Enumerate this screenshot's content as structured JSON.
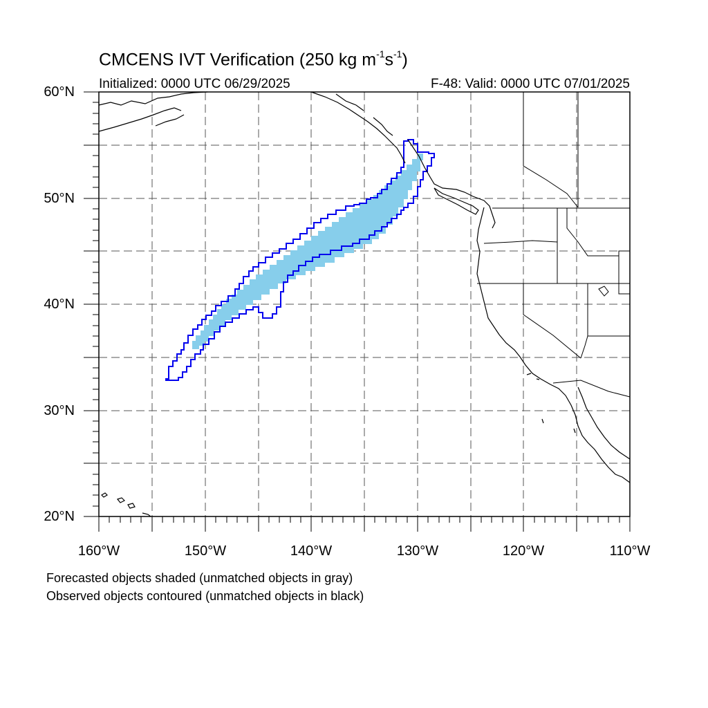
{
  "title": {
    "main": "CMCENS IVT Verification (250 kg m",
    "sup1": "-1",
    "mid": "s",
    "sup2": "-1",
    "end": ")"
  },
  "subtitle": {
    "left": "Initialized: 0000 UTC 06/29/2025",
    "right": "F-48: Valid: 0000 UTC 07/01/2025"
  },
  "lat_labels": [
    "60°N",
    "50°N",
    "40°N",
    "30°N",
    "20°N"
  ],
  "lon_labels": [
    "160°W",
    "150°W",
    "140°W",
    "130°W",
    "120°W",
    "110°W"
  ],
  "footnotes": {
    "line1": "Forecasted objects shaded (unmatched objects in gray)",
    "line2": "Observed objects contoured (unmatched objects in black)"
  },
  "colors": {
    "forecast_fill": "#87ceeb",
    "observed_contour": "#0000ee",
    "coastline": "#000000",
    "grid": "#555555"
  }
}
